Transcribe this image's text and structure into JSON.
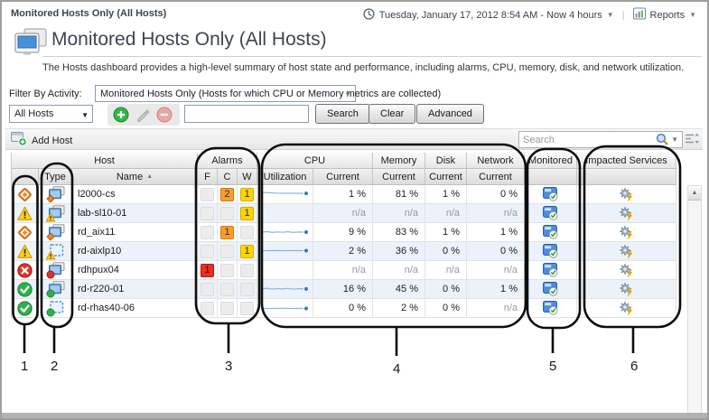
{
  "header": {
    "breadcrumb": "Monitored Hosts Only (All Hosts)",
    "timerange": "Tuesday, January 17, 2012 8:54 AM - Now 4 hours",
    "reports": "Reports"
  },
  "page": {
    "title": "Monitored Hosts Only (All Hosts)",
    "description": "The Hosts dashboard provides a high-level summary of host state and performance, including alarms, CPU, memory, disk, and network utilization."
  },
  "filter": {
    "label": "Filter By Activity:",
    "value": "Monitored Hosts Only (Hosts for which CPU or Memory metrics are collected)"
  },
  "toolbar": {
    "scope_value": "All Hosts",
    "filter_input_value": "",
    "search_label": "Search",
    "clear_label": "Clear",
    "advanced_label": "Advanced"
  },
  "actions": {
    "add_host_label": "Add Host",
    "table_search_placeholder": "Search"
  },
  "table": {
    "group_headers": [
      "Host",
      "Alarms",
      "CPU",
      "Memory",
      "Disk",
      "Network",
      "Monitored",
      "Impacted Services"
    ],
    "sub_headers": [
      "Type",
      "Name",
      "F",
      "C",
      "W",
      "Utilization",
      "Current",
      "Current",
      "Current",
      "Current"
    ],
    "sort_indicator": "▲",
    "na_text": "n/a",
    "rows": [
      {
        "name": "l2000-cs",
        "status": "critical",
        "host_type": "physical",
        "alarms": {
          "f": "",
          "c": "2",
          "w": "1"
        },
        "cpu_sparkline": [
          6,
          6.4,
          6.8,
          7,
          7,
          7,
          7.1
        ],
        "cpu_current": "1 %",
        "memory_current": "81 %",
        "disk_current": "1 %",
        "network_current": "0 %",
        "monitored": true,
        "impacted_services": true
      },
      {
        "name": "lab-sl10-01",
        "status": "warning",
        "host_type": "physical",
        "alarms": {
          "f": "",
          "c": "",
          "w": "1"
        },
        "cpu_sparkline": null,
        "cpu_current": "n/a",
        "memory_current": "n/a",
        "disk_current": "n/a",
        "network_current": "n/a",
        "monitored": true,
        "impacted_services": true
      },
      {
        "name": "rd_aix11",
        "status": "critical",
        "host_type": "physical",
        "alarms": {
          "f": "",
          "c": "1",
          "w": ""
        },
        "cpu_sparkline": [
          8,
          7.4,
          8.4,
          7.8,
          8.2,
          7.5,
          8.3,
          7.9,
          8
        ],
        "cpu_current": "9 %",
        "memory_current": "83 %",
        "disk_current": "1 %",
        "network_current": "1 %",
        "monitored": true,
        "impacted_services": true
      },
      {
        "name": "rd-aixlp10",
        "status": "warning",
        "host_type": "virtual",
        "alarms": {
          "f": "",
          "c": "",
          "w": "1"
        },
        "cpu_sparkline": [
          7.5,
          7.5,
          7.4,
          7.5,
          7.5,
          7.4,
          7.5
        ],
        "cpu_current": "2 %",
        "memory_current": "36 %",
        "disk_current": "0 %",
        "network_current": "0 %",
        "monitored": true,
        "impacted_services": true
      },
      {
        "name": "rdhpux04",
        "status": "fatal",
        "host_type": "physical",
        "alarms": {
          "f": "1",
          "c": "",
          "w": ""
        },
        "cpu_sparkline": null,
        "cpu_current": "n/a",
        "memory_current": "n/a",
        "disk_current": "n/a",
        "network_current": "n/a",
        "monitored": true,
        "impacted_services": true
      },
      {
        "name": "rd-r220-01",
        "status": "normal",
        "host_type": "physical",
        "alarms": {
          "f": "",
          "c": "",
          "w": ""
        },
        "cpu_sparkline": [
          7.8,
          7.1,
          8.2,
          7.4,
          8,
          7.2,
          8.2,
          7.6,
          7.9
        ],
        "cpu_current": "16 %",
        "memory_current": "45 %",
        "disk_current": "0 %",
        "network_current": "1 %",
        "monitored": true,
        "impacted_services": true
      },
      {
        "name": "rd-rhas40-06",
        "status": "normal",
        "host_type": "virtual",
        "alarms": {
          "f": "",
          "c": "",
          "w": ""
        },
        "cpu_sparkline": [
          8.5,
          8.5,
          8.4,
          8.5,
          8.5
        ],
        "cpu_current": "0 %",
        "memory_current": "2 %",
        "disk_current": "0 %",
        "network_current": "n/a",
        "monitored": true,
        "impacted_services": true
      }
    ]
  },
  "callouts": {
    "labels": [
      "1",
      "2",
      "3",
      "4",
      "5",
      "6"
    ]
  },
  "colors": {
    "fatal": "#e23128",
    "critical": "#f58220",
    "warning": "#ffd21c",
    "normal": "#2fb04a",
    "alarm_fatal_bg": "#ee2e24",
    "alarm_critical_bg": "#ff9c2e",
    "alarm_warning_bg": "#ffd400",
    "sparkline": "#86b6e8",
    "accent_blue": "#4a90d9"
  }
}
